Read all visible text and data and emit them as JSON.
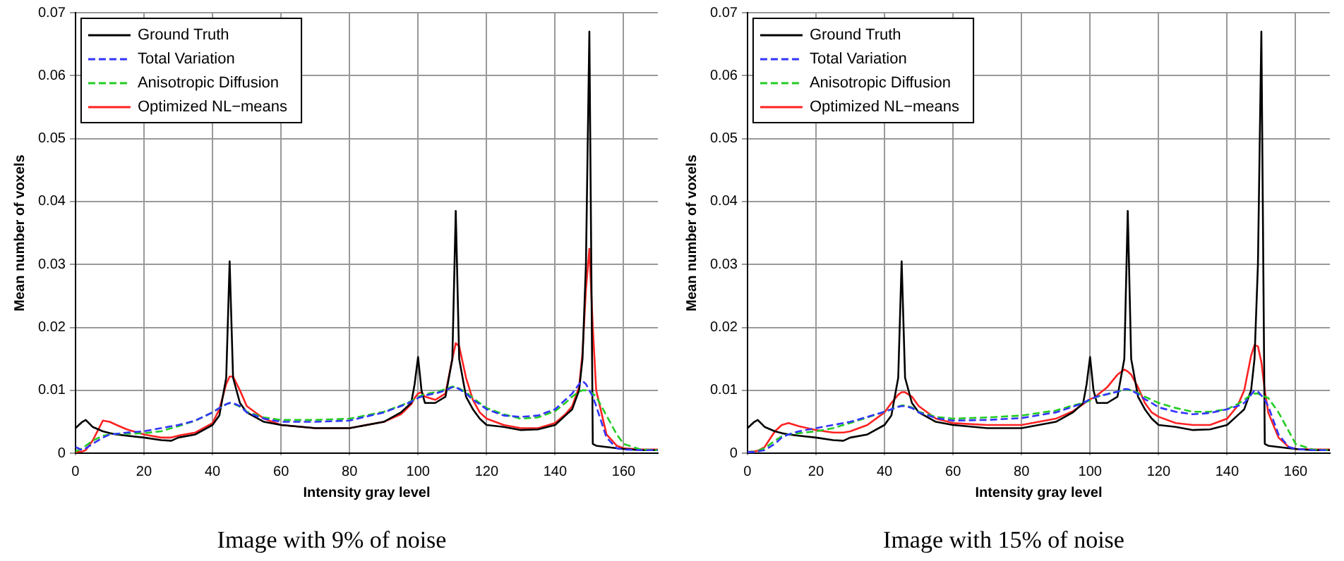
{
  "chart_data": [
    {
      "type": "line",
      "title": "Image with 9% of noise",
      "xlabel": "Intensity gray level",
      "ylabel": "Mean number of voxels",
      "x": [
        0,
        2,
        3,
        5,
        8,
        10,
        12,
        15,
        20,
        25,
        28,
        30,
        35,
        40,
        42,
        44,
        45,
        46,
        48,
        50,
        55,
        60,
        70,
        80,
        90,
        95,
        98,
        99,
        100,
        101,
        102,
        105,
        108,
        110,
        111,
        112,
        114,
        116,
        118,
        120,
        125,
        130,
        135,
        140,
        143,
        145,
        147,
        148,
        149,
        150,
        151,
        152,
        155,
        158,
        160,
        165,
        170
      ],
      "xlim": [
        0,
        170
      ],
      "xticks": [
        0,
        20,
        40,
        60,
        80,
        100,
        120,
        140,
        160
      ],
      "ylim": [
        0,
        0.07
      ],
      "yticks": [
        0,
        0.01,
        0.02,
        0.03,
        0.04,
        0.05,
        0.06,
        0.07
      ],
      "grid": true,
      "legend": "top left",
      "marker": "none",
      "series": [
        {
          "name": "Ground Truth",
          "color": "#000000",
          "line_style": "solid",
          "values": [
            0.004,
            0.005,
            0.0053,
            0.0042,
            0.0035,
            0.0032,
            0.003,
            0.0028,
            0.0025,
            0.0021,
            0.002,
            0.0025,
            0.003,
            0.0045,
            0.006,
            0.012,
            0.0305,
            0.012,
            0.008,
            0.0065,
            0.005,
            0.0045,
            0.004,
            0.004,
            0.005,
            0.0065,
            0.008,
            0.011,
            0.0153,
            0.01,
            0.008,
            0.008,
            0.009,
            0.015,
            0.0385,
            0.015,
            0.009,
            0.007,
            0.0055,
            0.0045,
            0.0042,
            0.0037,
            0.0038,
            0.0045,
            0.006,
            0.007,
            0.01,
            0.015,
            0.03,
            0.067,
            0.0015,
            0.0012,
            0.001,
            0.0008,
            0.0007,
            0.0005,
            0.0005
          ]
        },
        {
          "name": "Total Variation",
          "color": "#3333ff",
          "line_style": "dashed",
          "values": [
            0.001,
            0.0005,
            0.0008,
            0.0015,
            0.0025,
            0.003,
            0.0031,
            0.0033,
            0.0035,
            0.004,
            0.0043,
            0.0045,
            0.0052,
            0.0065,
            0.0072,
            0.0078,
            0.008,
            0.008,
            0.0075,
            0.0065,
            0.0055,
            0.005,
            0.005,
            0.0052,
            0.0065,
            0.0075,
            0.0082,
            0.0085,
            0.0088,
            0.009,
            0.0092,
            0.0095,
            0.01,
            0.0105,
            0.0105,
            0.0102,
            0.0095,
            0.0085,
            0.0078,
            0.007,
            0.006,
            0.0058,
            0.006,
            0.007,
            0.0085,
            0.0095,
            0.011,
            0.0115,
            0.011,
            0.01,
            0.009,
            0.0075,
            0.0025,
            0.0008,
            0.0006,
            0.0005,
            0.0005
          ]
        },
        {
          "name": "Anisotropic Diffusion",
          "color": "#22cc22",
          "line_style": "dashed",
          "values": [
            0.0003,
            0.0008,
            0.0012,
            0.002,
            0.0028,
            0.003,
            0.0031,
            0.0031,
            0.0032,
            0.0035,
            0.004,
            0.0043,
            0.0052,
            0.0065,
            0.0072,
            0.0078,
            0.008,
            0.0079,
            0.0074,
            0.0066,
            0.0057,
            0.0053,
            0.0053,
            0.0055,
            0.0066,
            0.0076,
            0.0083,
            0.0086,
            0.0089,
            0.0092,
            0.0094,
            0.0097,
            0.0102,
            0.0106,
            0.0105,
            0.0103,
            0.0097,
            0.0088,
            0.008,
            0.0072,
            0.0062,
            0.0055,
            0.0057,
            0.0067,
            0.008,
            0.009,
            0.0098,
            0.01,
            0.01,
            0.0098,
            0.0095,
            0.009,
            0.006,
            0.003,
            0.0015,
            0.0006,
            0.0005
          ]
        },
        {
          "name": "Optimized NL−means",
          "color": "#ff2222",
          "line_style": "solid",
          "values": [
            0.0002,
            0.0003,
            0.0005,
            0.002,
            0.0052,
            0.005,
            0.0045,
            0.0038,
            0.003,
            0.0025,
            0.0025,
            0.0028,
            0.0033,
            0.0048,
            0.007,
            0.011,
            0.0122,
            0.0122,
            0.01,
            0.0075,
            0.0055,
            0.0045,
            0.004,
            0.004,
            0.005,
            0.0062,
            0.0078,
            0.0088,
            0.0095,
            0.0097,
            0.009,
            0.0085,
            0.0095,
            0.015,
            0.0175,
            0.017,
            0.012,
            0.0085,
            0.0065,
            0.0055,
            0.0045,
            0.004,
            0.004,
            0.0048,
            0.0062,
            0.0075,
            0.0105,
            0.016,
            0.026,
            0.0325,
            0.02,
            0.01,
            0.003,
            0.0012,
            0.0008,
            0.0006,
            0.0006
          ]
        }
      ]
    },
    {
      "type": "line",
      "title": "Image with 15% of noise",
      "xlabel": "Intensity gray level",
      "ylabel": "Mean number of voxels",
      "x": [
        0,
        2,
        3,
        5,
        8,
        10,
        12,
        15,
        20,
        25,
        28,
        30,
        35,
        40,
        42,
        44,
        45,
        46,
        48,
        50,
        55,
        60,
        70,
        80,
        90,
        95,
        98,
        99,
        100,
        101,
        102,
        105,
        108,
        110,
        111,
        112,
        114,
        116,
        118,
        120,
        125,
        130,
        135,
        140,
        143,
        145,
        147,
        148,
        149,
        150,
        151,
        152,
        155,
        158,
        160,
        165,
        170
      ],
      "xlim": [
        0,
        170
      ],
      "xticks": [
        0,
        20,
        40,
        60,
        80,
        100,
        120,
        140,
        160
      ],
      "ylim": [
        0,
        0.07
      ],
      "yticks": [
        0,
        0.01,
        0.02,
        0.03,
        0.04,
        0.05,
        0.06,
        0.07
      ],
      "grid": true,
      "legend": "top left",
      "marker": "none",
      "series": [
        {
          "name": "Ground Truth",
          "color": "#000000",
          "line_style": "solid",
          "values": [
            0.004,
            0.005,
            0.0053,
            0.0042,
            0.0035,
            0.0032,
            0.003,
            0.0028,
            0.0025,
            0.0021,
            0.002,
            0.0025,
            0.003,
            0.0045,
            0.006,
            0.012,
            0.0305,
            0.012,
            0.008,
            0.0065,
            0.005,
            0.0045,
            0.004,
            0.004,
            0.005,
            0.0065,
            0.008,
            0.011,
            0.0153,
            0.01,
            0.008,
            0.008,
            0.009,
            0.015,
            0.0385,
            0.015,
            0.009,
            0.007,
            0.0055,
            0.0045,
            0.0042,
            0.0037,
            0.0038,
            0.0045,
            0.006,
            0.007,
            0.01,
            0.015,
            0.03,
            0.067,
            0.0015,
            0.0012,
            0.001,
            0.0008,
            0.0007,
            0.0005,
            0.0005
          ]
        },
        {
          "name": "Total Variation",
          "color": "#3333ff",
          "line_style": "dashed",
          "values": [
            0.0002,
            0.0002,
            0.0003,
            0.0005,
            0.0015,
            0.0025,
            0.003,
            0.0035,
            0.004,
            0.0045,
            0.0048,
            0.005,
            0.0058,
            0.0066,
            0.007,
            0.0074,
            0.0075,
            0.0075,
            0.0072,
            0.0065,
            0.0056,
            0.0052,
            0.0053,
            0.0056,
            0.0065,
            0.0074,
            0.008,
            0.0083,
            0.0086,
            0.0088,
            0.009,
            0.0094,
            0.0098,
            0.0102,
            0.0102,
            0.01,
            0.0094,
            0.0086,
            0.008,
            0.0073,
            0.0066,
            0.0062,
            0.0064,
            0.007,
            0.0075,
            0.008,
            0.0093,
            0.01,
            0.0098,
            0.0092,
            0.0085,
            0.0075,
            0.003,
            0.001,
            0.0007,
            0.0005,
            0.0005
          ]
        },
        {
          "name": "Anisotropic Diffusion",
          "color": "#22cc22",
          "line_style": "dashed",
          "values": [
            0.0002,
            0.0003,
            0.0004,
            0.0008,
            0.002,
            0.0027,
            0.003,
            0.0032,
            0.0035,
            0.004,
            0.0045,
            0.0048,
            0.0057,
            0.0066,
            0.007,
            0.0074,
            0.0076,
            0.0076,
            0.0073,
            0.0066,
            0.0058,
            0.0055,
            0.0057,
            0.006,
            0.0068,
            0.0076,
            0.008,
            0.0082,
            0.0084,
            0.0087,
            0.009,
            0.0094,
            0.0098,
            0.0101,
            0.0101,
            0.01,
            0.0096,
            0.009,
            0.0085,
            0.008,
            0.0072,
            0.0066,
            0.0066,
            0.007,
            0.0078,
            0.0085,
            0.0093,
            0.0095,
            0.0095,
            0.0092,
            0.009,
            0.0088,
            0.0065,
            0.0035,
            0.0015,
            0.0006,
            0.0005
          ]
        },
        {
          "name": "Optimized NL−means",
          "color": "#ff2222",
          "line_style": "solid",
          "values": [
            0.0002,
            0.0003,
            0.0004,
            0.001,
            0.0035,
            0.0045,
            0.0048,
            0.0043,
            0.0037,
            0.0033,
            0.0033,
            0.0035,
            0.0045,
            0.0065,
            0.008,
            0.0093,
            0.0097,
            0.0097,
            0.009,
            0.0075,
            0.0055,
            0.0048,
            0.0045,
            0.0045,
            0.0055,
            0.0067,
            0.0078,
            0.0082,
            0.0086,
            0.0088,
            0.0092,
            0.0105,
            0.0125,
            0.0133,
            0.013,
            0.0125,
            0.0105,
            0.008,
            0.0065,
            0.0058,
            0.0048,
            0.0045,
            0.0045,
            0.0055,
            0.0075,
            0.01,
            0.0155,
            0.0172,
            0.017,
            0.0145,
            0.01,
            0.0065,
            0.0025,
            0.001,
            0.0007,
            0.0006,
            0.0006
          ]
        }
      ]
    }
  ]
}
